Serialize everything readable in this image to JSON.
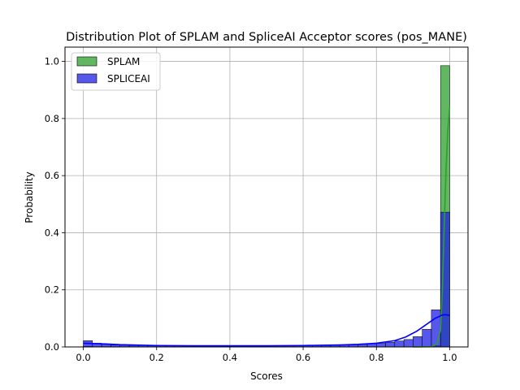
{
  "chart_data": {
    "type": "bar",
    "title": "Distribution Plot of SPLAM and SpliceAI Acceptor scores (pos_MANE)",
    "xlabel": "Scores",
    "ylabel": "Probability",
    "xlim": [
      -0.05,
      1.05
    ],
    "ylim": [
      0,
      1.05
    ],
    "xticks": [
      "0.0",
      "0.2",
      "0.4",
      "0.6",
      "0.8",
      "1.0"
    ],
    "yticks": [
      "0.0",
      "0.2",
      "0.4",
      "0.6",
      "0.8",
      "1.0"
    ],
    "grid": true,
    "legend_position": "upper-left",
    "bin_width": 0.025,
    "bin_start": 0.0,
    "series": [
      {
        "name": "SPLAM",
        "color": "#2ca02c",
        "fill": "#2ca02c",
        "values": [
          0.002,
          0.001,
          0.001,
          0.001,
          0,
          0,
          0,
          0,
          0,
          0,
          0,
          0,
          0,
          0,
          0,
          0,
          0,
          0,
          0,
          0,
          0,
          0,
          0,
          0,
          0,
          0,
          0,
          0,
          0,
          0,
          0,
          0,
          0,
          0,
          0,
          0,
          0.001,
          0.002,
          0.004,
          0.985
        ],
        "kde": [
          [
            0.9,
            0.0
          ],
          [
            0.95,
            0.001
          ],
          [
            0.965,
            0.01
          ],
          [
            0.975,
            0.06
          ],
          [
            0.98,
            0.2
          ],
          [
            0.985,
            0.42
          ],
          [
            0.99,
            0.62
          ],
          [
            0.995,
            0.76
          ],
          [
            1.0,
            0.84
          ]
        ]
      },
      {
        "name": "SPLICEAI",
        "color": "#0000ff",
        "fill": "#1f1fe6",
        "values": [
          0.022,
          0.013,
          0.009,
          0.007,
          0.006,
          0.005,
          0.005,
          0.004,
          0.004,
          0.004,
          0.004,
          0.004,
          0.004,
          0.004,
          0.004,
          0.004,
          0.004,
          0.004,
          0.004,
          0.004,
          0.004,
          0.004,
          0.005,
          0.005,
          0.005,
          0.005,
          0.006,
          0.006,
          0.007,
          0.008,
          0.009,
          0.011,
          0.013,
          0.016,
          0.021,
          0.026,
          0.036,
          0.062,
          0.13,
          0.472
        ],
        "kde": [
          [
            0.0,
            0.013
          ],
          [
            0.05,
            0.011
          ],
          [
            0.1,
            0.008
          ],
          [
            0.2,
            0.005
          ],
          [
            0.3,
            0.004
          ],
          [
            0.4,
            0.004
          ],
          [
            0.5,
            0.004
          ],
          [
            0.6,
            0.005
          ],
          [
            0.7,
            0.007
          ],
          [
            0.75,
            0.009
          ],
          [
            0.8,
            0.013
          ],
          [
            0.85,
            0.022
          ],
          [
            0.88,
            0.035
          ],
          [
            0.91,
            0.055
          ],
          [
            0.94,
            0.082
          ],
          [
            0.96,
            0.1
          ],
          [
            0.98,
            0.112
          ],
          [
            0.99,
            0.113
          ],
          [
            1.0,
            0.11
          ]
        ]
      }
    ]
  }
}
